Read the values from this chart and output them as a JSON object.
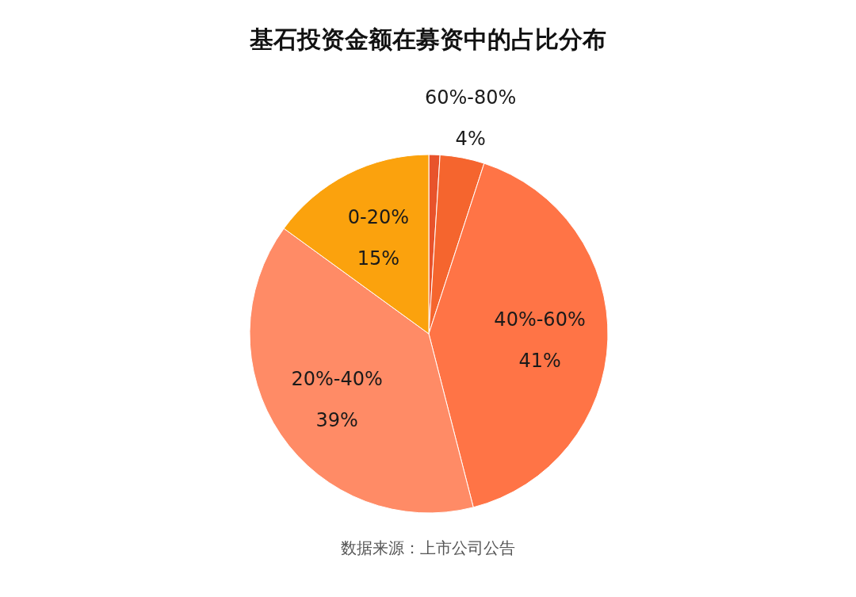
{
  "chart_data": {
    "type": "pie",
    "title": "基石投资金额在募资中的占比分布",
    "categories": [
      null,
      "60%-80%",
      "40%-60%",
      "20%-40%",
      "0-20%"
    ],
    "values": [
      1,
      4,
      41,
      39,
      15
    ],
    "value_labels": [
      null,
      "4%",
      "41%",
      "39%",
      "15%"
    ],
    "colors": [
      "#e8532b",
      "#f5652e",
      "#ff7446",
      "#ff8b66",
      "#fba20d"
    ],
    "annotations": [
      "数据来源：上市公司公告"
    ]
  }
}
